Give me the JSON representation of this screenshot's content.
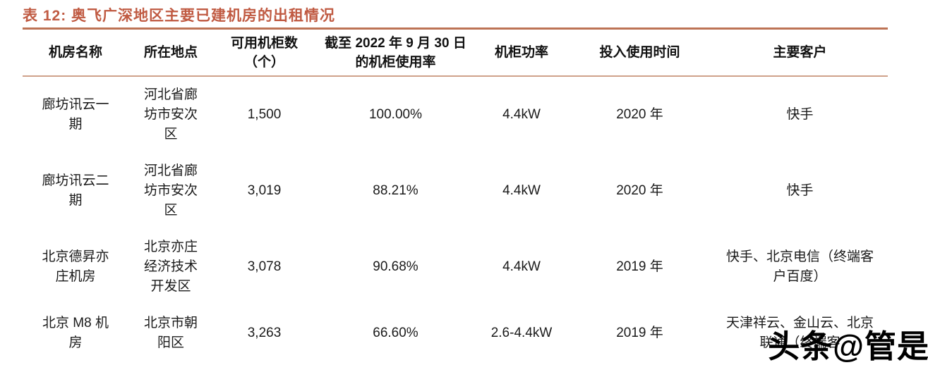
{
  "page": {
    "title": "表 12:  奥飞广深地区主要已建机房的出租情况",
    "watermark": "头条@管是"
  },
  "colors": {
    "title_text": "#c05a42",
    "title_rule": "#bd7355",
    "header_rule": "#cfa18a",
    "body_text": "#1a1a1a",
    "watermark_text": "#000000"
  },
  "table": {
    "headers": [
      "机房名称",
      "所在地点",
      "可用机柜数\n（个）",
      "截至 2022 年 9 月 30 日\n的机柜使用率",
      "机柜功率",
      "投入使用时间",
      "主要客户"
    ],
    "rows": [
      {
        "name": "廊坊讯云一\n期",
        "location": "河北省廊\n坊市安次\n区",
        "cabinets": "1,500",
        "usage": "100.00%",
        "power": "4.4kW",
        "in_service": "2020 年",
        "customers": "快手"
      },
      {
        "name": "廊坊讯云二\n期",
        "location": "河北省廊\n坊市安次\n区",
        "cabinets": "3,019",
        "usage": "88.21%",
        "power": "4.4kW",
        "in_service": "2020 年",
        "customers": "快手"
      },
      {
        "name": "北京德昇亦\n庄机房",
        "location": "北京亦庄\n经济技术\n开发区",
        "cabinets": "3,078",
        "usage": "90.68%",
        "power": "4.4kW",
        "in_service": "2019 年",
        "customers": "快手、北京电信（终端客\n户百度）"
      },
      {
        "name": "北京 M8 机\n房",
        "location": "北京市朝\n阳区",
        "cabinets": "3,263",
        "usage": "66.60%",
        "power": "2.6-4.4kW",
        "in_service": "2019 年",
        "customers": "天津祥云、金山云、北京\n联通（终端客"
      }
    ]
  }
}
